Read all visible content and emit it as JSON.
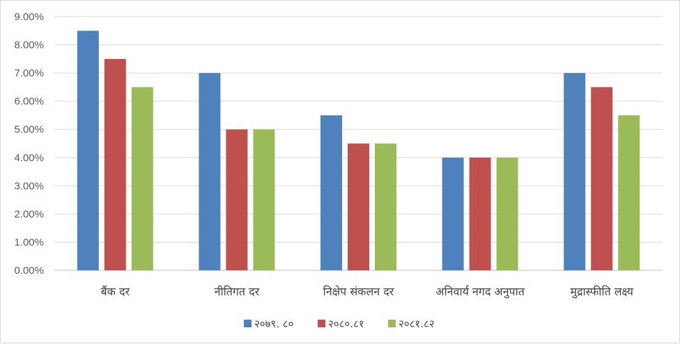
{
  "chart_data": {
    "type": "bar",
    "title": "",
    "xlabel": "",
    "ylabel": "",
    "categories": [
      "बैंक दर",
      "नीतिगत दर",
      "निक्षेप संकलन दर",
      "अनिवार्य नगद अनुपात",
      "मुद्रास्फीति लक्ष्य"
    ],
    "series": [
      {
        "name": "२०७९. ८०",
        "color": "#4f81bd",
        "values": [
          8.5,
          7.0,
          5.5,
          4.0,
          7.0
        ]
      },
      {
        "name": "२०८०.८१",
        "color": "#c0504d",
        "values": [
          7.5,
          5.0,
          4.5,
          4.0,
          6.5
        ]
      },
      {
        "name": "२०८१.८२",
        "color": "#9bbb59",
        "values": [
          6.5,
          5.0,
          4.5,
          4.0,
          5.5
        ]
      }
    ],
    "ylim": [
      0,
      9
    ],
    "yticks": [
      "0.00%",
      "1.00%",
      "2.00%",
      "3.00%",
      "4.00%",
      "5.00%",
      "6.00%",
      "7.00%",
      "8.00%",
      "9.00%"
    ],
    "grid": true,
    "legend_position": "bottom"
  }
}
